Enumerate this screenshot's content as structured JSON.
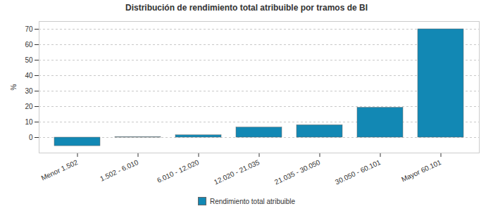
{
  "chart_data": {
    "type": "bar",
    "title": "Distribución de rendimiento total atribuible por tramos de BI",
    "y_label": "%",
    "categories": [
      "Menor 1.502",
      "1.502 - 6.010",
      "6.010 - 12.020",
      "12.020 - 21.035",
      "21.035 - 30.050",
      "30.050 - 60.101",
      "Mayor 60.101"
    ],
    "series": [
      {
        "name": "Rendimiento total atribuible",
        "color": "#1288b4",
        "values": [
          -5.5,
          0.3,
          1.5,
          6.5,
          8,
          19.3,
          70
        ]
      }
    ],
    "ylim": [
      -10,
      75
    ],
    "yticks": [
      0,
      10,
      20,
      30,
      40,
      50,
      60,
      70
    ],
    "grid": true,
    "legend": "bottom"
  }
}
